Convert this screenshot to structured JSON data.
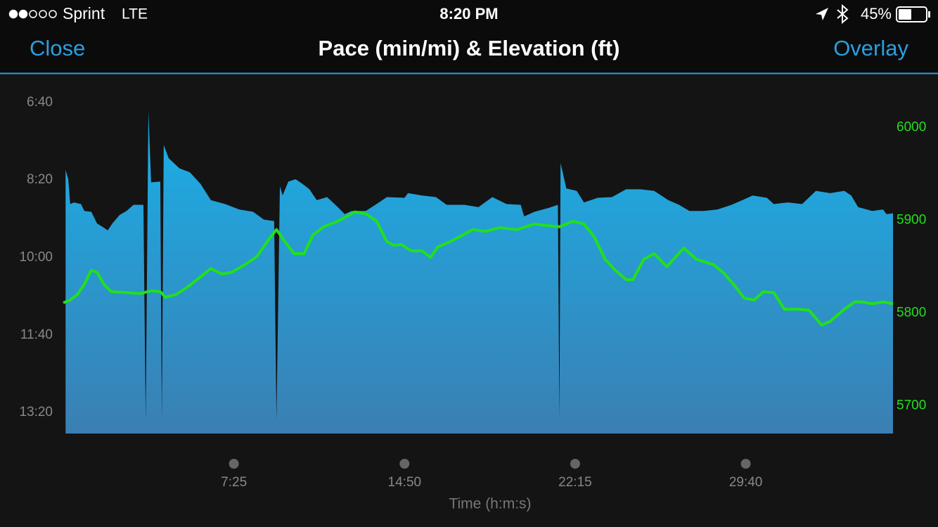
{
  "status_bar": {
    "carrier": "Sprint",
    "network": "LTE",
    "time": "8:20 PM",
    "battery": "45%"
  },
  "nav": {
    "left_button": "Close",
    "right_button": "Overlay"
  },
  "chart_data": {
    "type": "area",
    "title": "Pace (min/mi) & Elevation (ft)",
    "x_label": "Time (h:m:s)",
    "xlim": [
      0,
      2164
    ],
    "xticks": [
      {
        "value": 445,
        "label": "7:25"
      },
      {
        "value": 890,
        "label": "14:50"
      },
      {
        "value": 1335,
        "label": "22:15"
      },
      {
        "value": 1780,
        "label": "29:40"
      }
    ],
    "ylim": [
      827,
      363
    ],
    "yticks": [
      {
        "value": 400,
        "label": "6:40"
      },
      {
        "value": 500,
        "label": "8:20"
      },
      {
        "value": 600,
        "label": "10:00"
      },
      {
        "value": 700,
        "label": "11:40"
      },
      {
        "value": 800,
        "label": "13:20"
      }
    ],
    "y2lim": [
      5670,
      6058
    ],
    "y2ticks": [
      5700,
      5800,
      5900,
      6000
    ],
    "series": [
      {
        "type": "area",
        "color": "#1ab0e8",
        "x": [
          6,
          13,
          18,
          28,
          46,
          55,
          73,
          88,
          101,
          116,
          128,
          147,
          165,
          183,
          209,
          215,
          222,
          229,
          253,
          257,
          262,
          275,
          303,
          330,
          358,
          385,
          422,
          459,
          495,
          523,
          550,
          556,
          565,
          572,
          587,
          606,
          624,
          642,
          661,
          688,
          716,
          734,
          752,
          789,
          817,
          844,
          890,
          899,
          936,
          972,
          1000,
          1046,
          1083,
          1119,
          1156,
          1193,
          1202,
          1229,
          1266,
          1290,
          1294,
          1297,
          1312,
          1339,
          1358,
          1394,
          1431,
          1468,
          1505,
          1541,
          1578,
          1606,
          1633,
          1670,
          1706,
          1743,
          1771,
          1798,
          1835,
          1853,
          1890,
          1927,
          1963,
          2000,
          2037,
          2055,
          2073,
          2110,
          2138,
          2147,
          2164
        ],
        "values": [
          487,
          499,
          531,
          529,
          531,
          540,
          541,
          556,
          560,
          565,
          556,
          545,
          540,
          532,
          532,
          810,
          411,
          503,
          502,
          810,
          455,
          472,
          485,
          490,
          505,
          526,
          531,
          538,
          541,
          551,
          553,
          810,
          508,
          520,
          502,
          499,
          505,
          512,
          526,
          522,
          535,
          544,
          540,
          540,
          531,
          522,
          523,
          517,
          520,
          522,
          532,
          532,
          535,
          522,
          531,
          532,
          547,
          541,
          536,
          532,
          810,
          478,
          511,
          514,
          529,
          523,
          522,
          512,
          512,
          514,
          526,
          532,
          540,
          540,
          538,
          532,
          526,
          520,
          523,
          531,
          529,
          531,
          514,
          517,
          514,
          520,
          535,
          540,
          538,
          544,
          543
        ]
      },
      {
        "type": "line",
        "axis": "y2",
        "color": "#22e01c",
        "x": [
          0,
          18,
          37,
          55,
          73,
          88,
          106,
          125,
          165,
          202,
          229,
          253,
          266,
          294,
          321,
          358,
          385,
          413,
          440,
          477,
          505,
          532,
          556,
          578,
          602,
          628,
          651,
          679,
          716,
          761,
          789,
          817,
          844,
          862,
          881,
          908,
          936,
          958,
          976,
          1009,
          1037,
          1068,
          1101,
          1138,
          1183,
          1229,
          1266,
          1294,
          1330,
          1358,
          1385,
          1413,
          1440,
          1468,
          1486,
          1514,
          1541,
          1574,
          1618,
          1651,
          1697,
          1725,
          1752,
          1776,
          1802,
          1826,
          1853,
          1881,
          1917,
          1945,
          1978,
          2000,
          2037,
          2064,
          2083,
          2110,
          2138,
          2164
        ],
        "values": [
          5811,
          5814,
          5820,
          5831,
          5846,
          5844,
          5831,
          5823,
          5822,
          5821,
          5824,
          5823,
          5817,
          5820,
          5827,
          5839,
          5848,
          5842,
          5844,
          5853,
          5861,
          5877,
          5890,
          5877,
          5864,
          5864,
          5884,
          5893,
          5899,
          5909,
          5907,
          5899,
          5877,
          5873,
          5874,
          5867,
          5867,
          5860,
          5871,
          5877,
          5883,
          5890,
          5888,
          5892,
          5890,
          5896,
          5894,
          5893,
          5899,
          5896,
          5882,
          5858,
          5846,
          5836,
          5836,
          5858,
          5864,
          5850,
          5870,
          5858,
          5852,
          5842,
          5829,
          5816,
          5814,
          5823,
          5822,
          5804,
          5804,
          5803,
          5787,
          5791,
          5804,
          5812,
          5812,
          5810,
          5812,
          5810
        ]
      }
    ]
  }
}
